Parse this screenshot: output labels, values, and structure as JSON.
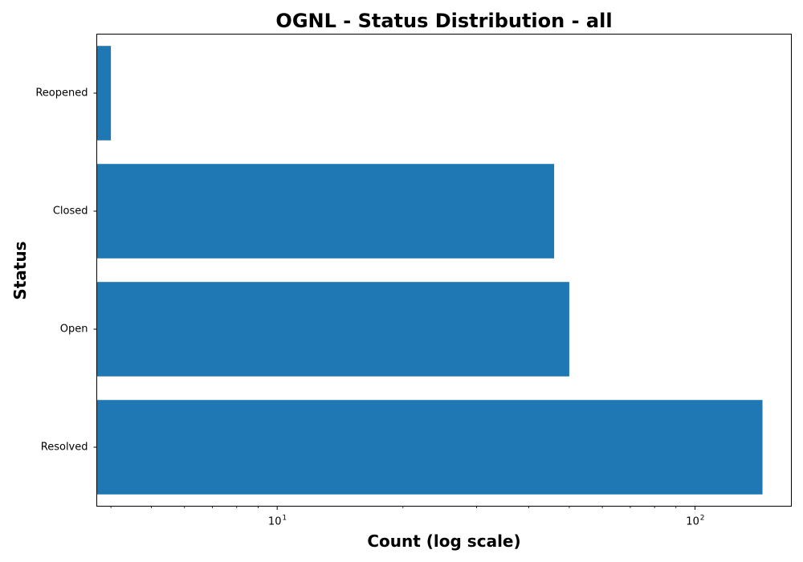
{
  "chart_data": {
    "type": "bar",
    "orientation": "horizontal",
    "title": "OGNL - Status Distribution - all",
    "xlabel": "Count (log scale)",
    "ylabel": "Status",
    "x_scale": "log",
    "xlim": [
      3.7,
      170
    ],
    "categories": [
      "Resolved",
      "Open",
      "Closed",
      "Reopened"
    ],
    "values": [
      145,
      50,
      46,
      4
    ],
    "x_ticks": [
      {
        "base": "10",
        "exp": "1",
        "value": 10
      },
      {
        "base": "10",
        "exp": "2",
        "value": 100
      }
    ],
    "bar_color": "#1f77b4",
    "grid": false,
    "legend": "none"
  }
}
